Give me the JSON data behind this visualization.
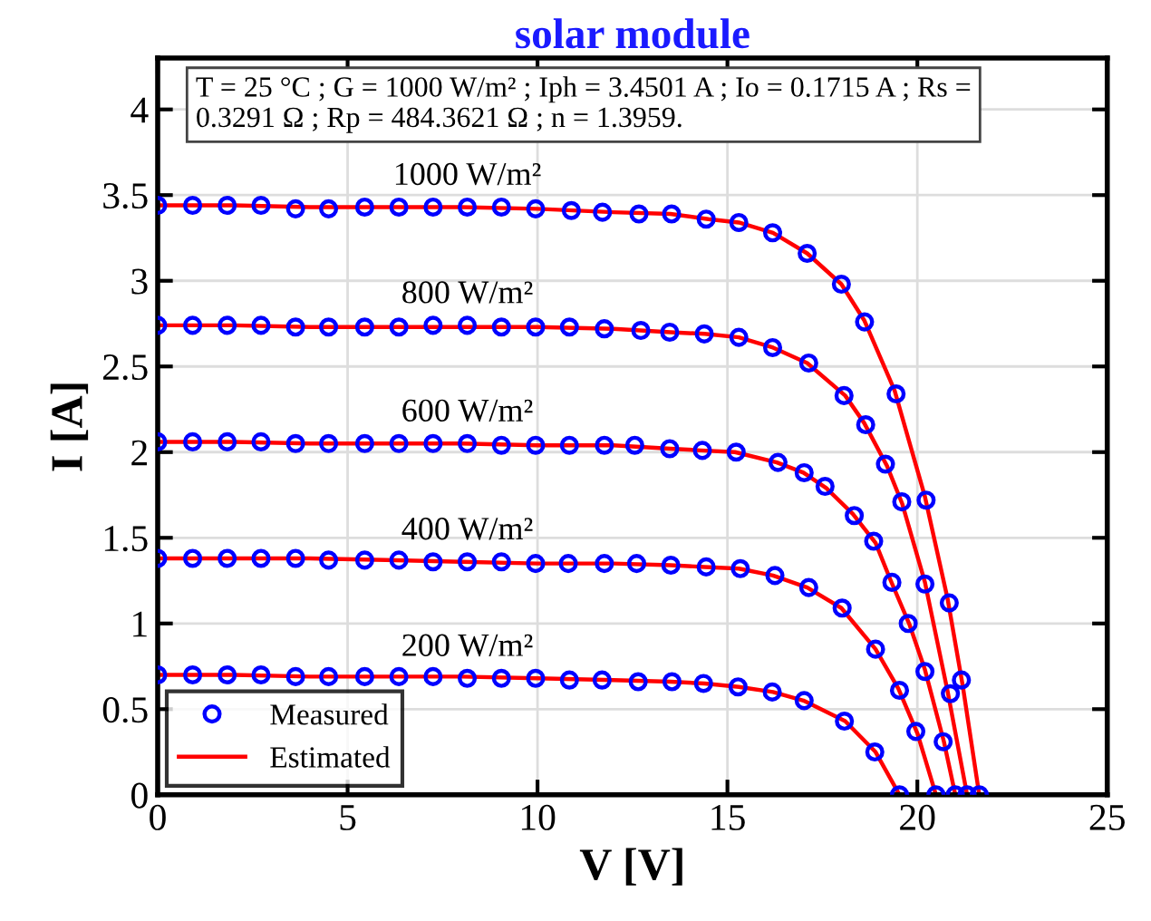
{
  "chart_data": {
    "type": "line",
    "title": "solar module",
    "xlabel": "V [V]",
    "ylabel": "I [A]",
    "xlim": [
      0,
      25
    ],
    "ylim": [
      0,
      4.3
    ],
    "xticks": [
      0,
      5,
      10,
      15,
      20,
      25
    ],
    "yticks": [
      0,
      0.5,
      1,
      1.5,
      2,
      2.5,
      3,
      3.5,
      4
    ],
    "grid": true,
    "legend": "bottom left",
    "annotations": [
      "T = 25 °C ; G = 1000 W/m² ; Iph = 3.4501 A ; Io = 0.1715 A ; Rs =\n0.3291 Ω ; Rp = 484.3621 Ω ; n = 1.3959.",
      "1000 W/m²",
      "800 W/m²",
      "600 W/m²",
      "400 W/m²",
      "200 W/m²"
    ],
    "series": [
      {
        "name": "Measured",
        "type": "scatter",
        "marker": "circle",
        "color": "#0000ff",
        "x": [
          0,
          0.92,
          1.83,
          2.72,
          3.63,
          4.5,
          5.45,
          6.35,
          7.25,
          8.15,
          9.05,
          9.95,
          10.89,
          11.71,
          12.67,
          13.53,
          14.44,
          15.3,
          16.19,
          17.1,
          18.0,
          18.61,
          19.44,
          20.23,
          20.84,
          21.16,
          21.63
        ],
        "values": [
          3.44,
          3.44,
          3.44,
          3.44,
          3.42,
          3.42,
          3.43,
          3.43,
          3.43,
          3.43,
          3.43,
          3.42,
          3.41,
          3.4,
          3.39,
          3.39,
          3.36,
          3.34,
          3.28,
          3.16,
          2.98,
          2.76,
          2.34,
          1.72,
          1.12,
          0.67,
          0
        ]
      },
      {
        "type": "scatter",
        "marker": "circle",
        "color": "#0000ff",
        "x": [
          0,
          0.92,
          1.83,
          2.72,
          3.63,
          4.5,
          5.45,
          6.35,
          7.25,
          8.15,
          9.05,
          9.95,
          10.84,
          11.76,
          12.72,
          13.48,
          14.39,
          15.3,
          16.19,
          17.14,
          18.07,
          18.64,
          19.16,
          19.59,
          20.2,
          20.87,
          21.31
        ],
        "values": [
          2.74,
          2.74,
          2.74,
          2.74,
          2.73,
          2.73,
          2.73,
          2.73,
          2.74,
          2.74,
          2.73,
          2.73,
          2.73,
          2.72,
          2.71,
          2.7,
          2.69,
          2.67,
          2.61,
          2.52,
          2.33,
          2.16,
          1.93,
          1.71,
          1.23,
          0.59,
          0
        ]
      },
      {
        "type": "scatter",
        "marker": "circle",
        "color": "#0000ff",
        "x": [
          0,
          0.92,
          1.83,
          2.72,
          3.63,
          4.5,
          5.45,
          6.35,
          7.25,
          8.15,
          9.05,
          9.95,
          10.84,
          11.76,
          12.56,
          13.48,
          14.34,
          15.23,
          16.33,
          17.02,
          17.57,
          18.34,
          18.85,
          19.33,
          19.76,
          20.2,
          20.68,
          21.0
        ],
        "values": [
          2.06,
          2.06,
          2.06,
          2.06,
          2.05,
          2.05,
          2.05,
          2.05,
          2.05,
          2.05,
          2.04,
          2.04,
          2.04,
          2.04,
          2.04,
          2.02,
          2.01,
          2.0,
          1.94,
          1.88,
          1.8,
          1.63,
          1.48,
          1.24,
          1.0,
          0.72,
          0.31,
          0
        ]
      },
      {
        "type": "scatter",
        "marker": "circle",
        "color": "#0000ff",
        "x": [
          0,
          0.92,
          1.83,
          2.72,
          3.63,
          4.5,
          5.45,
          6.35,
          7.25,
          8.15,
          9.05,
          9.95,
          10.81,
          11.76,
          12.61,
          13.51,
          14.44,
          15.34,
          16.25,
          17.14,
          18.02,
          18.9,
          19.53,
          19.96,
          20.49
        ],
        "values": [
          1.38,
          1.38,
          1.38,
          1.38,
          1.38,
          1.37,
          1.37,
          1.37,
          1.36,
          1.36,
          1.36,
          1.35,
          1.35,
          1.35,
          1.35,
          1.34,
          1.33,
          1.32,
          1.28,
          1.21,
          1.09,
          0.85,
          0.61,
          0.37,
          0
        ]
      },
      {
        "type": "scatter",
        "marker": "circle",
        "color": "#0000ff",
        "x": [
          0,
          0.92,
          1.83,
          2.72,
          3.63,
          4.5,
          5.45,
          6.35,
          7.25,
          8.15,
          9.05,
          9.95,
          10.84,
          11.7,
          12.65,
          13.54,
          14.37,
          15.28,
          16.18,
          17.02,
          18.08,
          18.88,
          19.53
        ],
        "values": [
          0.7,
          0.7,
          0.7,
          0.7,
          0.69,
          0.69,
          0.69,
          0.69,
          0.69,
          0.68,
          0.68,
          0.68,
          0.67,
          0.67,
          0.66,
          0.66,
          0.65,
          0.63,
          0.6,
          0.55,
          0.43,
          0.25,
          0
        ]
      },
      {
        "name": "Estimated",
        "line_style": "solid",
        "color": "#ff0000",
        "x": [
          0,
          2,
          4,
          6,
          8,
          10,
          12,
          13.5,
          14.5,
          15.3,
          16.2,
          17.1,
          18.0,
          18.6,
          19.4,
          20.2,
          20.8,
          21.2,
          21.63
        ],
        "values": [
          3.44,
          3.44,
          3.43,
          3.43,
          3.43,
          3.42,
          3.4,
          3.39,
          3.36,
          3.34,
          3.28,
          3.16,
          2.98,
          2.77,
          2.36,
          1.74,
          1.14,
          0.63,
          0
        ]
      },
      {
        "type": "line",
        "line_style": "solid",
        "color": "#ff0000",
        "x": [
          0,
          2,
          4,
          6,
          8,
          10,
          12,
          13.5,
          14.4,
          15.3,
          16.2,
          17.1,
          18.1,
          18.6,
          19.2,
          19.6,
          20.2,
          20.8,
          21.31
        ],
        "values": [
          2.74,
          2.74,
          2.73,
          2.73,
          2.73,
          2.73,
          2.72,
          2.7,
          2.69,
          2.67,
          2.61,
          2.52,
          2.33,
          2.17,
          1.92,
          1.7,
          1.24,
          0.6,
          0
        ]
      },
      {
        "type": "line",
        "line_style": "solid",
        "color": "#ff0000",
        "x": [
          0,
          2,
          4,
          6,
          8,
          10,
          12,
          13.5,
          14.3,
          15.2,
          16.3,
          17.0,
          17.6,
          18.3,
          18.9,
          19.3,
          19.8,
          20.2,
          20.7,
          21.0
        ],
        "values": [
          2.06,
          2.06,
          2.05,
          2.05,
          2.05,
          2.04,
          2.04,
          2.02,
          2.01,
          2.0,
          1.94,
          1.88,
          1.79,
          1.64,
          1.47,
          1.25,
          0.99,
          0.73,
          0.31,
          0
        ]
      },
      {
        "type": "line",
        "line_style": "solid",
        "color": "#ff0000",
        "x": [
          0,
          2,
          4,
          6,
          8,
          10,
          12,
          13.5,
          14.4,
          15.3,
          16.2,
          17.1,
          18.0,
          18.9,
          19.5,
          20.0,
          20.49
        ],
        "values": [
          1.38,
          1.38,
          1.38,
          1.37,
          1.36,
          1.35,
          1.35,
          1.34,
          1.33,
          1.32,
          1.28,
          1.21,
          1.09,
          0.85,
          0.62,
          0.36,
          0
        ]
      },
      {
        "type": "line",
        "line_style": "solid",
        "color": "#ff0000",
        "x": [
          0,
          2,
          4,
          6,
          8,
          10,
          12,
          13.5,
          14.4,
          15.3,
          16.2,
          17.0,
          18.1,
          18.9,
          19.53
        ],
        "values": [
          0.7,
          0.7,
          0.69,
          0.69,
          0.69,
          0.68,
          0.67,
          0.66,
          0.65,
          0.63,
          0.6,
          0.55,
          0.43,
          0.25,
          0
        ]
      }
    ]
  }
}
